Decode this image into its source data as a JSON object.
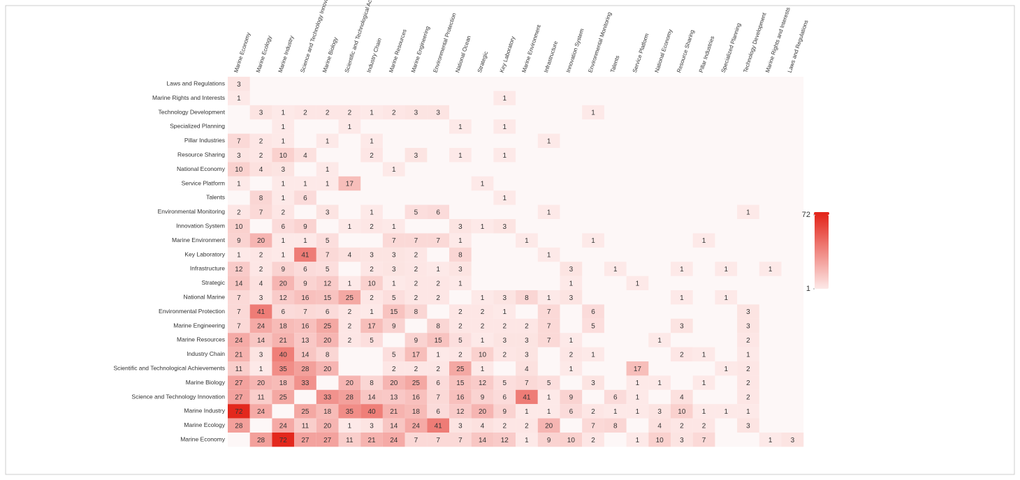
{
  "chart_data": {
    "type": "heatmap",
    "x": [
      "Marine Economy",
      "Marine Ecology",
      "Marine Industry",
      "Science and Technology Innovation",
      "Marine Biology",
      "Scientific and Technological Achievements",
      "Industry Chain",
      "Marine Resources",
      "Marine Engineering",
      "Environmental Protection",
      "National Ocean",
      "Strategic",
      "Key Laboratory",
      "Marine Environment",
      "Infrastructure",
      "Innovation System",
      "Environmental Monitoring",
      "Talents",
      "Service Platform",
      "National Economy",
      "Resource Sharing",
      "Pillar Industries",
      "Specialized Planning",
      "Technology Development",
      "Marine Rights and Interests",
      "Laws and Regulations"
    ],
    "y": [
      "Laws and Regulations",
      "Marine Rights and Interests",
      "Technology Development",
      "Specialized Planning",
      "Pillar Industries",
      "Resource Sharing",
      "National Economy",
      "Service Platform",
      "Talents",
      "Environmental Monitoring",
      "Innovation System",
      "Marine Environment",
      "Key Laboratory",
      "Infrastructure",
      "Strategic",
      "National Marine",
      "Environmental Protection",
      "Marine Engineering",
      "Marine Resources",
      "Industry Chain",
      "Scientific and Technological Achievements",
      "Marine Biology",
      "Science and Technology Innovation",
      "Marine Industry",
      "Marine Ecology",
      "Marine Economy"
    ],
    "z": [
      [
        3,
        null,
        null,
        null,
        null,
        null,
        null,
        null,
        null,
        null,
        null,
        null,
        null,
        null,
        null,
        null,
        null,
        null,
        null,
        null,
        null,
        null,
        null,
        null,
        null,
        null
      ],
      [
        1,
        null,
        null,
        null,
        null,
        null,
        null,
        null,
        null,
        null,
        null,
        null,
        1,
        null,
        null,
        null,
        null,
        null,
        null,
        null,
        null,
        null,
        null,
        null,
        null,
        null
      ],
      [
        null,
        3,
        1,
        2,
        2,
        2,
        1,
        2,
        3,
        3,
        null,
        null,
        null,
        null,
        null,
        null,
        1,
        null,
        null,
        null,
        null,
        null,
        null,
        null,
        null,
        null
      ],
      [
        null,
        null,
        1,
        null,
        null,
        1,
        null,
        null,
        null,
        null,
        1,
        null,
        1,
        null,
        null,
        null,
        null,
        null,
        null,
        null,
        null,
        null,
        null,
        null,
        null,
        null
      ],
      [
        7,
        2,
        1,
        null,
        1,
        null,
        1,
        null,
        null,
        null,
        null,
        null,
        null,
        null,
        1,
        null,
        null,
        null,
        null,
        null,
        null,
        null,
        null,
        null,
        null,
        null
      ],
      [
        3,
        2,
        10,
        4,
        null,
        null,
        2,
        null,
        3,
        null,
        1,
        null,
        1,
        null,
        null,
        null,
        null,
        null,
        null,
        null,
        null,
        null,
        null,
        null,
        null,
        null
      ],
      [
        10,
        4,
        3,
        null,
        1,
        null,
        null,
        1,
        null,
        null,
        null,
        null,
        null,
        null,
        null,
        null,
        null,
        null,
        null,
        null,
        null,
        null,
        null,
        null,
        null,
        null
      ],
      [
        1,
        null,
        1,
        1,
        1,
        17,
        null,
        null,
        null,
        null,
        null,
        1,
        null,
        null,
        null,
        null,
        null,
        null,
        null,
        null,
        null,
        null,
        null,
        null,
        null,
        null
      ],
      [
        null,
        8,
        1,
        6,
        null,
        null,
        null,
        null,
        null,
        null,
        null,
        null,
        1,
        null,
        null,
        null,
        null,
        null,
        null,
        null,
        null,
        null,
        null,
        null,
        null,
        null
      ],
      [
        2,
        7,
        2,
        null,
        3,
        null,
        1,
        null,
        5,
        6,
        null,
        null,
        null,
        null,
        1,
        null,
        null,
        null,
        null,
        null,
        null,
        null,
        null,
        1,
        null,
        null
      ],
      [
        10,
        null,
        6,
        9,
        null,
        1,
        2,
        1,
        null,
        null,
        3,
        1,
        3,
        null,
        null,
        null,
        null,
        null,
        null,
        null,
        null,
        null,
        null,
        null,
        null,
        null
      ],
      [
        9,
        20,
        1,
        1,
        5,
        null,
        null,
        7,
        7,
        7,
        1,
        null,
        null,
        1,
        null,
        null,
        1,
        null,
        null,
        null,
        null,
        1,
        null,
        null,
        null,
        null
      ],
      [
        1,
        2,
        1,
        41,
        7,
        4,
        3,
        3,
        2,
        null,
        8,
        null,
        null,
        null,
        1,
        null,
        null,
        null,
        null,
        null,
        null,
        null,
        null,
        null,
        null,
        null
      ],
      [
        12,
        2,
        9,
        6,
        5,
        null,
        2,
        3,
        2,
        1,
        3,
        null,
        null,
        null,
        null,
        3,
        null,
        1,
        null,
        null,
        1,
        null,
        1,
        null,
        1,
        null
      ],
      [
        14,
        4,
        20,
        9,
        12,
        1,
        10,
        1,
        2,
        2,
        1,
        null,
        null,
        null,
        null,
        1,
        null,
        null,
        1,
        null,
        null,
        null,
        null,
        null,
        null,
        null
      ],
      [
        7,
        3,
        12,
        16,
        15,
        25,
        2,
        5,
        2,
        2,
        null,
        1,
        3,
        8,
        1,
        3,
        null,
        null,
        null,
        null,
        1,
        null,
        1,
        null,
        null,
        null
      ],
      [
        7,
        41,
        6,
        7,
        6,
        2,
        1,
        15,
        8,
        null,
        2,
        2,
        1,
        null,
        7,
        null,
        6,
        null,
        null,
        null,
        null,
        null,
        null,
        3,
        null,
        null
      ],
      [
        7,
        24,
        18,
        16,
        25,
        2,
        17,
        9,
        null,
        8,
        2,
        2,
        2,
        2,
        7,
        null,
        5,
        null,
        null,
        null,
        3,
        null,
        null,
        3,
        null,
        null
      ],
      [
        24,
        14,
        21,
        13,
        20,
        2,
        5,
        null,
        9,
        15,
        5,
        1,
        3,
        3,
        7,
        1,
        null,
        null,
        null,
        1,
        null,
        null,
        null,
        2,
        null,
        null
      ],
      [
        21,
        3,
        40,
        14,
        8,
        null,
        null,
        5,
        17,
        1,
        2,
        10,
        2,
        3,
        null,
        2,
        1,
        null,
        null,
        null,
        2,
        1,
        null,
        1,
        null,
        null
      ],
      [
        11,
        1,
        35,
        28,
        20,
        null,
        null,
        2,
        2,
        2,
        25,
        1,
        null,
        4,
        null,
        1,
        null,
        null,
        17,
        null,
        null,
        null,
        1,
        2,
        null,
        null
      ],
      [
        27,
        20,
        18,
        33,
        null,
        20,
        8,
        20,
        25,
        6,
        15,
        12,
        5,
        7,
        5,
        null,
        3,
        null,
        1,
        1,
        null,
        1,
        null,
        2,
        null,
        null
      ],
      [
        27,
        11,
        25,
        null,
        33,
        28,
        14,
        13,
        16,
        7,
        16,
        9,
        6,
        41,
        1,
        9,
        null,
        6,
        1,
        null,
        4,
        null,
        null,
        2,
        null,
        null
      ],
      [
        72,
        24,
        null,
        25,
        18,
        35,
        40,
        21,
        18,
        6,
        12,
        20,
        9,
        1,
        1,
        6,
        2,
        1,
        1,
        3,
        10,
        1,
        1,
        1,
        null,
        null
      ],
      [
        28,
        null,
        24,
        11,
        20,
        1,
        3,
        14,
        24,
        41,
        3,
        4,
        2,
        2,
        20,
        null,
        7,
        8,
        null,
        4,
        2,
        2,
        null,
        3,
        null,
        null
      ],
      [
        null,
        28,
        72,
        27,
        27,
        11,
        21,
        24,
        7,
        7,
        7,
        14,
        12,
        1,
        9,
        10,
        2,
        null,
        1,
        10,
        3,
        7,
        null,
        null,
        1,
        3
      ]
    ],
    "zlim": [
      1,
      72
    ],
    "zticks": [
      1,
      72
    ],
    "colors": [
      "#fde9e8",
      "#e3281d"
    ]
  }
}
